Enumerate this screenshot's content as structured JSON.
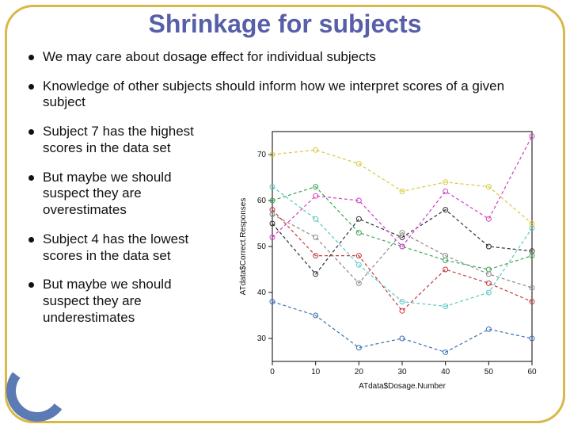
{
  "title": "Shrinkage for subjects",
  "bullets_top": [
    "We may care about dosage effect for individual subjects",
    "Knowledge of other subjects should inform how we interpret scores of a given subject"
  ],
  "bullets_left": [
    "Subject 7 has the highest scores in the data set",
    "But maybe we should suspect they are overestimates",
    "Subject 4 has the lowest scores in the data set",
    "But maybe we should suspect they are underestimates"
  ],
  "chart": {
    "type": "line",
    "xlabel": "ATdata$Dosage.Number",
    "ylabel": "ATdata$Correct.Responses",
    "xlim": [
      0,
      60
    ],
    "ylim": [
      25,
      75
    ],
    "xticks": [
      0,
      10,
      20,
      30,
      40,
      50,
      60
    ],
    "yticks": [
      30,
      40,
      50,
      60,
      70
    ],
    "background_color": "#ffffff",
    "axis_color": "#000000",
    "label_fontsize": 10,
    "tick_fontsize": 10,
    "series": [
      {
        "color": "#2e2e2e",
        "dash": "4 3",
        "x": [
          0,
          10,
          20,
          30,
          40,
          50,
          60
        ],
        "y": [
          55,
          44,
          56,
          52,
          58,
          50,
          49
        ]
      },
      {
        "color": "#c73a3a",
        "dash": "4 3",
        "x": [
          0,
          10,
          20,
          30,
          40,
          50,
          60
        ],
        "y": [
          58,
          48,
          48,
          36,
          45,
          42,
          38
        ]
      },
      {
        "color": "#3aa655",
        "dash": "4 3",
        "x": [
          0,
          10,
          20,
          30,
          40,
          50,
          60
        ],
        "y": [
          60,
          63,
          53,
          50,
          47,
          45,
          48
        ]
      },
      {
        "color": "#3b6fb5",
        "dash": "4 3",
        "x": [
          0,
          10,
          20,
          30,
          40,
          50,
          60
        ],
        "y": [
          38,
          35,
          28,
          30,
          27,
          32,
          30
        ]
      },
      {
        "color": "#58c6c0",
        "dash": "4 3",
        "x": [
          0,
          10,
          20,
          30,
          40,
          50,
          60
        ],
        "y": [
          63,
          56,
          46,
          38,
          37,
          40,
          54
        ]
      },
      {
        "color": "#d13fc5",
        "dash": "4 3",
        "x": [
          0,
          10,
          20,
          30,
          40,
          50,
          60
        ],
        "y": [
          52,
          61,
          60,
          50,
          62,
          56,
          74
        ]
      },
      {
        "color": "#d8c93a",
        "dash": "4 3",
        "x": [
          0,
          10,
          20,
          30,
          40,
          50,
          60
        ],
        "y": [
          70,
          71,
          68,
          62,
          64,
          63,
          55
        ]
      },
      {
        "color": "#8c8c8c",
        "dash": "4 3",
        "x": [
          0,
          10,
          20,
          30,
          40,
          50,
          60
        ],
        "y": [
          57,
          52,
          42,
          53,
          48,
          44,
          41
        ]
      }
    ],
    "marker": "circle",
    "marker_size": 3,
    "line_width": 1.2
  },
  "style": {
    "title_color": "#565fa8",
    "title_fontsize": 32,
    "body_fontsize": 17,
    "body_color": "#111111",
    "border_color": "#d9b84a",
    "accent_color": "#5b7bb4",
    "border_radius": 36
  }
}
